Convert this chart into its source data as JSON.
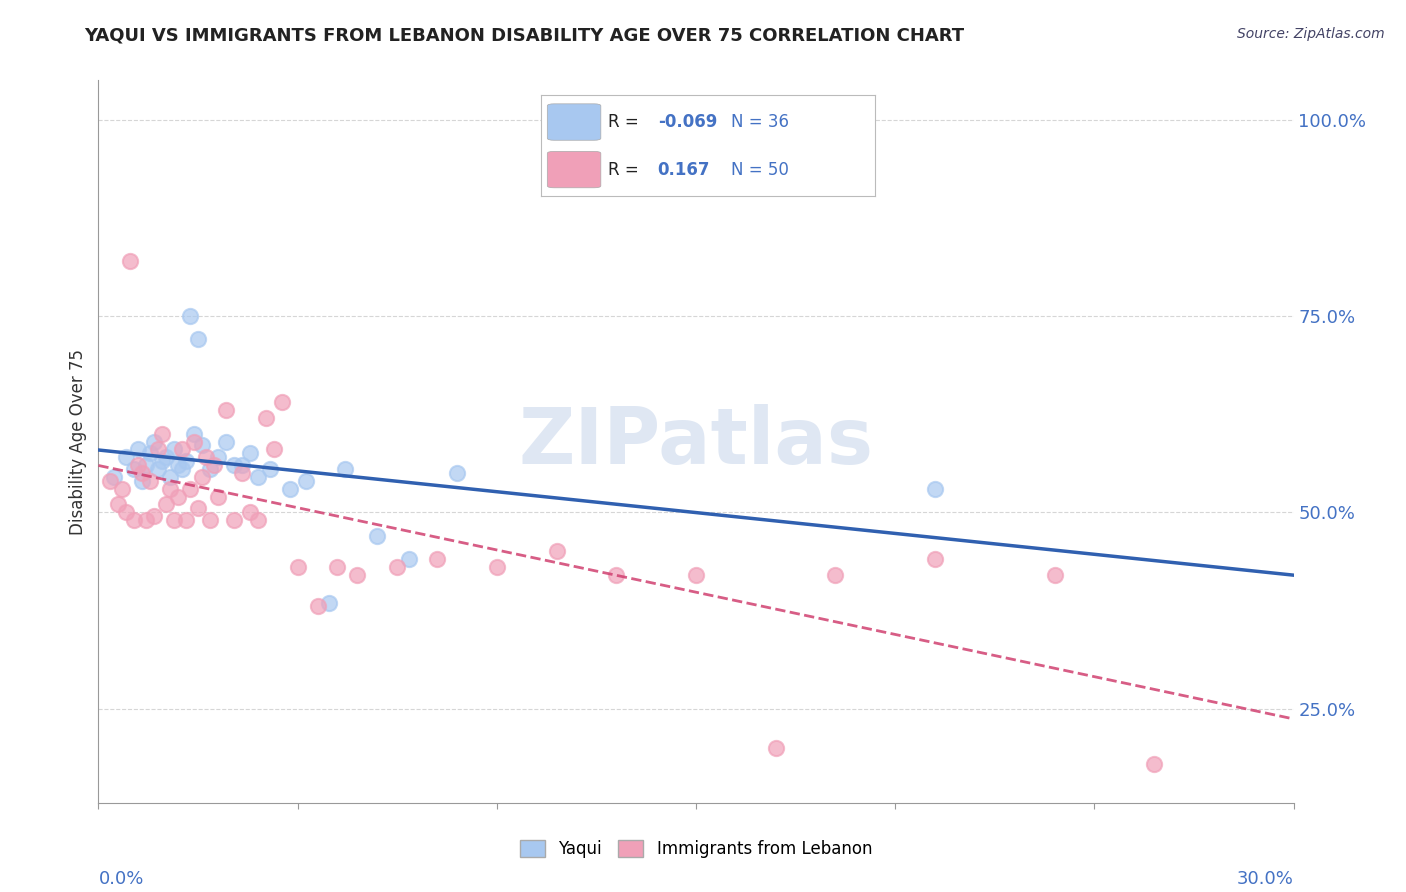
{
  "title": "YAQUI VS IMMIGRANTS FROM LEBANON DISABILITY AGE OVER 75 CORRELATION CHART",
  "source_text": "Source: ZipAtlas.com",
  "ylabel": "Disability Age Over 75",
  "legend_labels": [
    "Yaqui",
    "Immigrants from Lebanon"
  ],
  "r_yaqui": -0.069,
  "n_yaqui": 36,
  "r_lebanon": 0.167,
  "n_lebanon": 50,
  "title_color": "#222222",
  "source_color": "#333366",
  "yaqui_color": "#a8c8f0",
  "lebanon_color": "#f0a0b8",
  "yaqui_line_color": "#3060b0",
  "lebanon_line_color": "#d04070",
  "watermark_color": "#c0d0e8",
  "background_color": "#ffffff",
  "grid_color": "#cccccc",
  "axis_color": "#4472c4",
  "xlim": [
    0.0,
    0.3
  ],
  "ylim": [
    0.13,
    1.05
  ],
  "yaqui_x": [
    0.004,
    0.007,
    0.009,
    0.01,
    0.011,
    0.012,
    0.013,
    0.014,
    0.015,
    0.016,
    0.017,
    0.018,
    0.019,
    0.02,
    0.021,
    0.022,
    0.023,
    0.024,
    0.025,
    0.026,
    0.028,
    0.03,
    0.032,
    0.034,
    0.036,
    0.038,
    0.04,
    0.043,
    0.048,
    0.052,
    0.058,
    0.062,
    0.07,
    0.078,
    0.09,
    0.21
  ],
  "yaqui_y": [
    0.545,
    0.57,
    0.555,
    0.58,
    0.54,
    0.56,
    0.575,
    0.59,
    0.555,
    0.565,
    0.57,
    0.545,
    0.58,
    0.56,
    0.555,
    0.565,
    0.75,
    0.6,
    0.72,
    0.585,
    0.555,
    0.57,
    0.59,
    0.56,
    0.56,
    0.575,
    0.545,
    0.555,
    0.53,
    0.54,
    0.385,
    0.555,
    0.47,
    0.44,
    0.55,
    0.53
  ],
  "lebanon_x": [
    0.003,
    0.005,
    0.006,
    0.007,
    0.008,
    0.009,
    0.01,
    0.011,
    0.012,
    0.013,
    0.014,
    0.015,
    0.016,
    0.017,
    0.018,
    0.019,
    0.02,
    0.021,
    0.022,
    0.023,
    0.024,
    0.025,
    0.026,
    0.027,
    0.028,
    0.029,
    0.03,
    0.032,
    0.034,
    0.036,
    0.038,
    0.04,
    0.042,
    0.044,
    0.046,
    0.05,
    0.055,
    0.06,
    0.065,
    0.075,
    0.085,
    0.1,
    0.115,
    0.13,
    0.15,
    0.17,
    0.185,
    0.21,
    0.24,
    0.265
  ],
  "lebanon_y": [
    0.54,
    0.51,
    0.53,
    0.5,
    0.82,
    0.49,
    0.56,
    0.55,
    0.49,
    0.54,
    0.495,
    0.58,
    0.6,
    0.51,
    0.53,
    0.49,
    0.52,
    0.58,
    0.49,
    0.53,
    0.59,
    0.505,
    0.545,
    0.57,
    0.49,
    0.56,
    0.52,
    0.63,
    0.49,
    0.55,
    0.5,
    0.49,
    0.62,
    0.58,
    0.64,
    0.43,
    0.38,
    0.43,
    0.42,
    0.43,
    0.44,
    0.43,
    0.45,
    0.42,
    0.42,
    0.2,
    0.42,
    0.44,
    0.42,
    0.18
  ]
}
